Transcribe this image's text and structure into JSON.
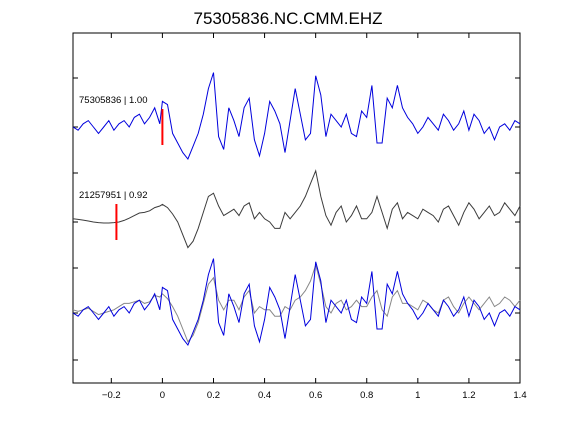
{
  "chart_data": {
    "type": "line",
    "title": "75305836.NC.CMM.EHZ",
    "xlabel": "",
    "ylabel": "",
    "xlim": [
      -0.35,
      1.4
    ],
    "xticks": [
      -0.2,
      0,
      0.2,
      0.4,
      0.6,
      0.8,
      1,
      1.2,
      1.4
    ],
    "xtick_labels": [
      "−0.2",
      "0",
      "0.2",
      "0.4",
      "0.6",
      "0.8",
      "1",
      "1.2",
      "1.4"
    ],
    "grid": false,
    "colors": {
      "primary": "#0000dd",
      "secondary": "#3c3c3c",
      "overlay": "#888888",
      "pick": "#ff0000"
    },
    "traces": [
      {
        "label": "75305836 | 1.00",
        "pick_time": 0.0,
        "color": "#0000dd",
        "x": [
          -0.35,
          -0.33,
          -0.31,
          -0.29,
          -0.27,
          -0.25,
          -0.23,
          -0.21,
          -0.19,
          -0.17,
          -0.15,
          -0.13,
          -0.11,
          -0.09,
          -0.07,
          -0.05,
          -0.03,
          -0.01,
          0.0,
          0.02,
          0.04,
          0.06,
          0.08,
          0.1,
          0.12,
          0.14,
          0.16,
          0.18,
          0.2,
          0.22,
          0.24,
          0.26,
          0.28,
          0.3,
          0.32,
          0.34,
          0.36,
          0.38,
          0.4,
          0.42,
          0.44,
          0.46,
          0.48,
          0.5,
          0.52,
          0.54,
          0.56,
          0.58,
          0.6,
          0.62,
          0.64,
          0.66,
          0.68,
          0.7,
          0.72,
          0.74,
          0.76,
          0.78,
          0.8,
          0.82,
          0.84,
          0.86,
          0.88,
          0.9,
          0.92,
          0.94,
          0.96,
          0.98,
          1.0,
          1.02,
          1.04,
          1.06,
          1.08,
          1.1,
          1.12,
          1.14,
          1.16,
          1.18,
          1.2,
          1.22,
          1.24,
          1.26,
          1.28,
          1.3,
          1.32,
          1.34,
          1.36,
          1.38,
          1.4
        ],
        "y": [
          0.0,
          -0.1,
          0.1,
          0.2,
          0.0,
          -0.2,
          0.0,
          0.2,
          -0.1,
          0.1,
          0.2,
          0.0,
          0.3,
          0.4,
          0.1,
          0.3,
          0.6,
          0.1,
          0.8,
          0.7,
          -0.2,
          -0.5,
          -0.8,
          -1.0,
          -0.6,
          -0.2,
          0.4,
          1.2,
          1.7,
          -0.3,
          -0.7,
          0.6,
          0.2,
          -0.3,
          0.6,
          0.9,
          -0.4,
          -0.9,
          -0.2,
          0.8,
          0.5,
          0.1,
          -0.8,
          0.2,
          1.2,
          0.4,
          -0.4,
          -0.2,
          1.6,
          1.0,
          -0.3,
          0.4,
          0.2,
          0.0,
          0.4,
          -0.2,
          -0.3,
          0.5,
          0.3,
          1.3,
          -0.5,
          -0.5,
          0.9,
          0.6,
          1.3,
          0.6,
          0.3,
          0.1,
          -0.2,
          0.0,
          0.3,
          0.1,
          -0.1,
          0.4,
          0.2,
          -0.1,
          0.1,
          0.5,
          -0.1,
          0.4,
          0.2,
          -0.2,
          0.0,
          -0.4,
          0.0,
          0.1,
          -0.1,
          0.2,
          0.1
        ]
      },
      {
        "label": "21257951 | 0.92",
        "pick_time": -0.18,
        "color": "#3c3c3c",
        "x": [
          -0.35,
          -0.33,
          -0.31,
          -0.29,
          -0.27,
          -0.25,
          -0.23,
          -0.21,
          -0.19,
          -0.17,
          -0.15,
          -0.13,
          -0.11,
          -0.09,
          -0.07,
          -0.05,
          -0.03,
          -0.01,
          0.0,
          0.02,
          0.04,
          0.06,
          0.08,
          0.1,
          0.12,
          0.14,
          0.16,
          0.18,
          0.2,
          0.22,
          0.24,
          0.26,
          0.28,
          0.3,
          0.32,
          0.34,
          0.36,
          0.38,
          0.4,
          0.42,
          0.44,
          0.46,
          0.48,
          0.5,
          0.52,
          0.54,
          0.56,
          0.58,
          0.6,
          0.62,
          0.64,
          0.66,
          0.68,
          0.7,
          0.72,
          0.74,
          0.76,
          0.78,
          0.8,
          0.82,
          0.84,
          0.86,
          0.88,
          0.9,
          0.92,
          0.94,
          0.96,
          0.98,
          1.0,
          1.02,
          1.04,
          1.06,
          1.08,
          1.1,
          1.12,
          1.14,
          1.16,
          1.18,
          1.2,
          1.22,
          1.24,
          1.26,
          1.28,
          1.3,
          1.32,
          1.34,
          1.36,
          1.38,
          1.4
        ],
        "y": [
          0.1,
          0.08,
          0.06,
          0.03,
          0.0,
          -0.02,
          -0.03,
          -0.03,
          -0.02,
          0.0,
          0.05,
          0.12,
          0.2,
          0.28,
          0.3,
          0.35,
          0.45,
          0.5,
          0.55,
          0.45,
          0.25,
          0.0,
          -0.4,
          -0.8,
          -0.6,
          -0.2,
          0.3,
          0.8,
          0.9,
          0.5,
          0.2,
          0.3,
          0.4,
          0.2,
          0.5,
          0.6,
          0.1,
          0.3,
          0.1,
          0.0,
          -0.2,
          -0.2,
          0.3,
          0.1,
          0.3,
          0.5,
          0.8,
          1.2,
          1.6,
          0.8,
          0.2,
          -0.1,
          0.3,
          0.5,
          0.0,
          0.2,
          0.5,
          0.1,
          0.1,
          0.3,
          0.8,
          0.3,
          -0.2,
          0.4,
          0.6,
          0.1,
          0.3,
          0.2,
          0.1,
          0.4,
          0.3,
          0.2,
          0.0,
          0.4,
          0.5,
          0.2,
          -0.1,
          0.3,
          0.6,
          0.4,
          0.1,
          0.3,
          0.5,
          0.2,
          0.3,
          0.6,
          0.4,
          0.2,
          0.5
        ]
      },
      {
        "label": "",
        "pick_time": null,
        "color": "#0000dd",
        "overlay_color": "#888888",
        "x": [
          -0.35,
          -0.33,
          -0.31,
          -0.29,
          -0.27,
          -0.25,
          -0.23,
          -0.21,
          -0.19,
          -0.17,
          -0.15,
          -0.13,
          -0.11,
          -0.09,
          -0.07,
          -0.05,
          -0.03,
          -0.01,
          0.0,
          0.02,
          0.04,
          0.06,
          0.08,
          0.1,
          0.12,
          0.14,
          0.16,
          0.18,
          0.2,
          0.22,
          0.24,
          0.26,
          0.28,
          0.3,
          0.32,
          0.34,
          0.36,
          0.38,
          0.4,
          0.42,
          0.44,
          0.46,
          0.48,
          0.5,
          0.52,
          0.54,
          0.56,
          0.58,
          0.6,
          0.62,
          0.64,
          0.66,
          0.68,
          0.7,
          0.72,
          0.74,
          0.76,
          0.78,
          0.8,
          0.82,
          0.84,
          0.86,
          0.88,
          0.9,
          0.92,
          0.94,
          0.96,
          0.98,
          1.0,
          1.02,
          1.04,
          1.06,
          1.08,
          1.1,
          1.12,
          1.14,
          1.16,
          1.18,
          1.2,
          1.22,
          1.24,
          1.26,
          1.28,
          1.3,
          1.32,
          1.34,
          1.36,
          1.38,
          1.4
        ],
        "y": [
          0.0,
          -0.1,
          0.1,
          0.2,
          0.0,
          -0.2,
          0.0,
          0.2,
          -0.1,
          0.1,
          0.2,
          0.0,
          0.3,
          0.4,
          0.1,
          0.3,
          0.6,
          0.1,
          0.8,
          0.7,
          -0.2,
          -0.5,
          -0.8,
          -1.0,
          -0.6,
          -0.2,
          0.4,
          1.2,
          1.7,
          -0.3,
          -0.7,
          0.6,
          0.2,
          -0.3,
          0.6,
          0.9,
          -0.4,
          -0.9,
          -0.2,
          0.8,
          0.5,
          0.1,
          -0.8,
          0.2,
          1.2,
          0.4,
          -0.4,
          -0.2,
          1.6,
          1.0,
          -0.3,
          0.4,
          0.2,
          0.0,
          0.4,
          -0.2,
          -0.3,
          0.5,
          0.3,
          1.3,
          -0.5,
          -0.5,
          0.9,
          0.6,
          1.3,
          0.6,
          0.3,
          0.1,
          -0.2,
          0.0,
          0.3,
          0.1,
          -0.1,
          0.4,
          0.2,
          -0.1,
          0.1,
          0.5,
          -0.1,
          0.4,
          0.2,
          -0.2,
          0.0,
          -0.4,
          0.0,
          0.1,
          -0.1,
          0.2,
          0.1
        ],
        "overlay_y": [
          0.1,
          0.05,
          0.1,
          0.15,
          0.05,
          -0.05,
          0.0,
          0.05,
          0.1,
          0.2,
          0.3,
          0.3,
          0.35,
          0.4,
          0.3,
          0.35,
          0.55,
          0.5,
          0.6,
          0.45,
          0.2,
          -0.1,
          -0.5,
          -0.9,
          -0.7,
          -0.3,
          0.3,
          0.9,
          1.1,
          0.4,
          0.1,
          0.4,
          0.4,
          0.1,
          0.5,
          0.7,
          0.0,
          0.2,
          0.1,
          0.1,
          -0.1,
          -0.1,
          0.2,
          0.1,
          0.4,
          0.5,
          0.7,
          1.0,
          1.5,
          0.9,
          0.2,
          0.0,
          0.3,
          0.4,
          0.1,
          0.2,
          0.4,
          0.2,
          0.2,
          0.5,
          0.7,
          0.1,
          -0.1,
          0.5,
          0.7,
          0.3,
          0.3,
          0.2,
          0.1,
          0.4,
          0.3,
          0.1,
          0.0,
          0.4,
          0.5,
          0.2,
          0.0,
          0.3,
          0.5,
          0.3,
          0.1,
          0.3,
          0.5,
          0.2,
          0.3,
          0.5,
          0.4,
          0.2,
          0.4
        ]
      }
    ]
  }
}
